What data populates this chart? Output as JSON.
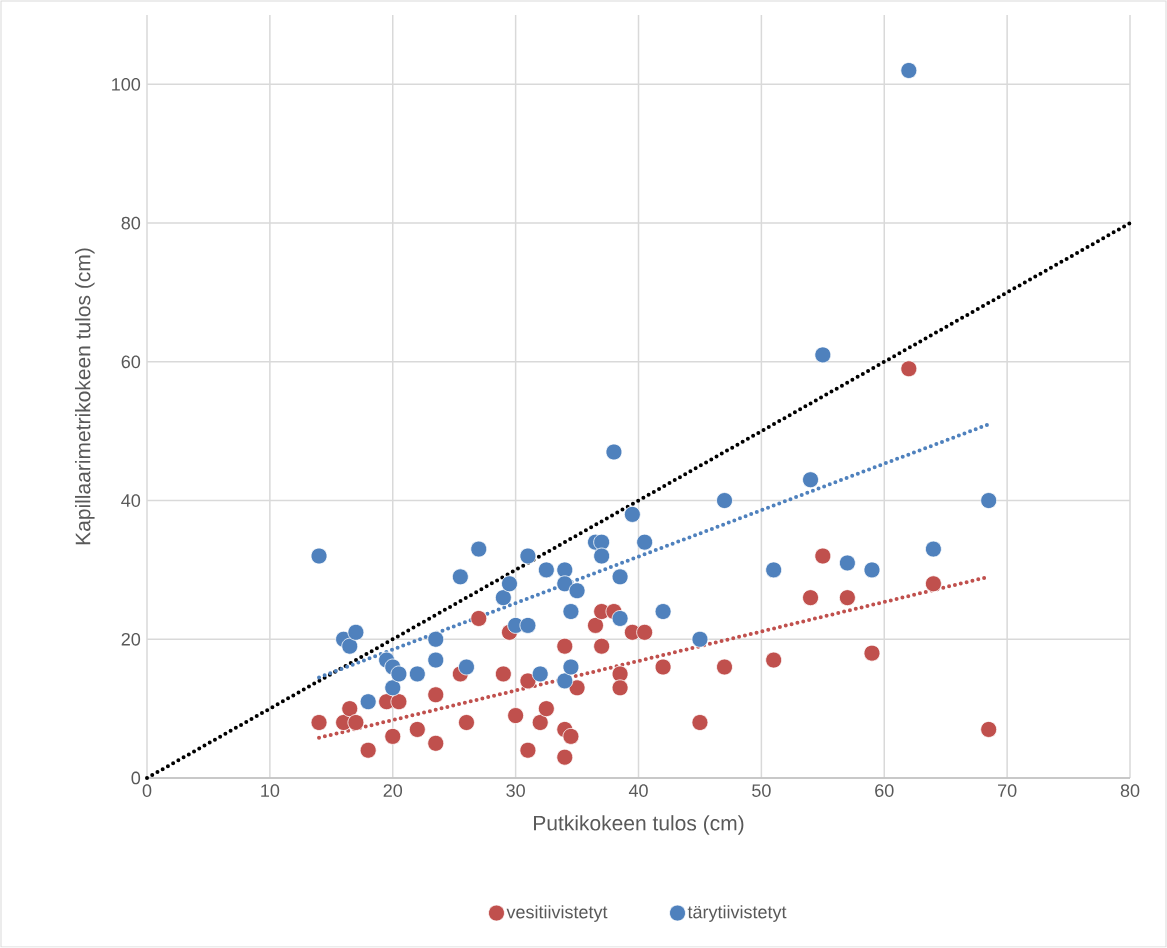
{
  "chart_data": {
    "type": "scatter",
    "xlabel": "Putkikokeen tulos (cm)",
    "ylabel": "Kapillaarimetrikokeen tulos (cm)",
    "xlim": [
      0,
      80
    ],
    "ylim": [
      0,
      110
    ],
    "xticks": [
      0,
      10,
      20,
      30,
      40,
      50,
      60,
      70,
      80
    ],
    "yticks": [
      0,
      20,
      40,
      60,
      80,
      100
    ],
    "grid": true,
    "legend": "bottom",
    "series": [
      {
        "name": "vesitiivistetyt",
        "color": "#c0504d",
        "marker": "circle",
        "x": [
          14,
          16,
          16.5,
          17,
          18,
          19.5,
          20,
          20.5,
          22,
          23.5,
          23.5,
          25.5,
          26,
          27,
          29,
          29.5,
          30,
          31,
          31,
          32,
          32.5,
          34,
          34,
          34,
          34.5,
          35,
          36.5,
          37,
          37,
          38,
          38.5,
          38.5,
          39.5,
          40.5,
          42,
          45,
          47,
          51,
          54,
          55,
          57,
          59,
          62,
          64,
          68.5
        ],
        "values": [
          8,
          8,
          10,
          8,
          4,
          11,
          6,
          11,
          7,
          12,
          5,
          15,
          8,
          23,
          15,
          21,
          9,
          14,
          4,
          8,
          10,
          19,
          7,
          3,
          6,
          13,
          22,
          24,
          19,
          24,
          15,
          13,
          21,
          21,
          16,
          8,
          16,
          17,
          26,
          32,
          26,
          18,
          59,
          28,
          7
        ]
      },
      {
        "name": "tärytiivistetyt",
        "color": "#4f81bd",
        "marker": "circle",
        "x": [
          14,
          16,
          16.5,
          17,
          18,
          19.5,
          20,
          20,
          20.5,
          22,
          23.5,
          23.5,
          25.5,
          26,
          27,
          29,
          29.5,
          30,
          31,
          31,
          32,
          32.5,
          34,
          34,
          34,
          34.5,
          34.5,
          35,
          36.5,
          37,
          37,
          38,
          38.5,
          38.5,
          39.5,
          40.5,
          42,
          45,
          47,
          51,
          54,
          55,
          57,
          59,
          62,
          64,
          68.5
        ],
        "values": [
          32,
          20,
          19,
          21,
          11,
          17,
          16,
          13,
          15,
          15,
          20,
          17,
          29,
          16,
          33,
          26,
          28,
          22,
          22,
          32,
          15,
          30,
          30,
          28,
          14,
          24,
          16,
          27,
          34,
          34,
          32,
          47,
          29,
          23,
          38,
          34,
          24,
          20,
          40,
          30,
          43,
          61,
          31,
          30,
          102,
          33,
          40
        ]
      },
      {
        "type": "line",
        "color": "#000000",
        "line_style": "dotted",
        "x": [
          0,
          80
        ],
        "values": [
          0,
          80
        ]
      },
      {
        "type": "line",
        "color": "#4f81bd",
        "line_style": "dotted",
        "x": [
          14,
          68.5
        ],
        "values": [
          14.5,
          51
        ]
      },
      {
        "type": "line",
        "color": "#c0504d",
        "line_style": "dotted",
        "x": [
          14,
          68.5
        ],
        "values": [
          5.8,
          29
        ]
      }
    ]
  }
}
